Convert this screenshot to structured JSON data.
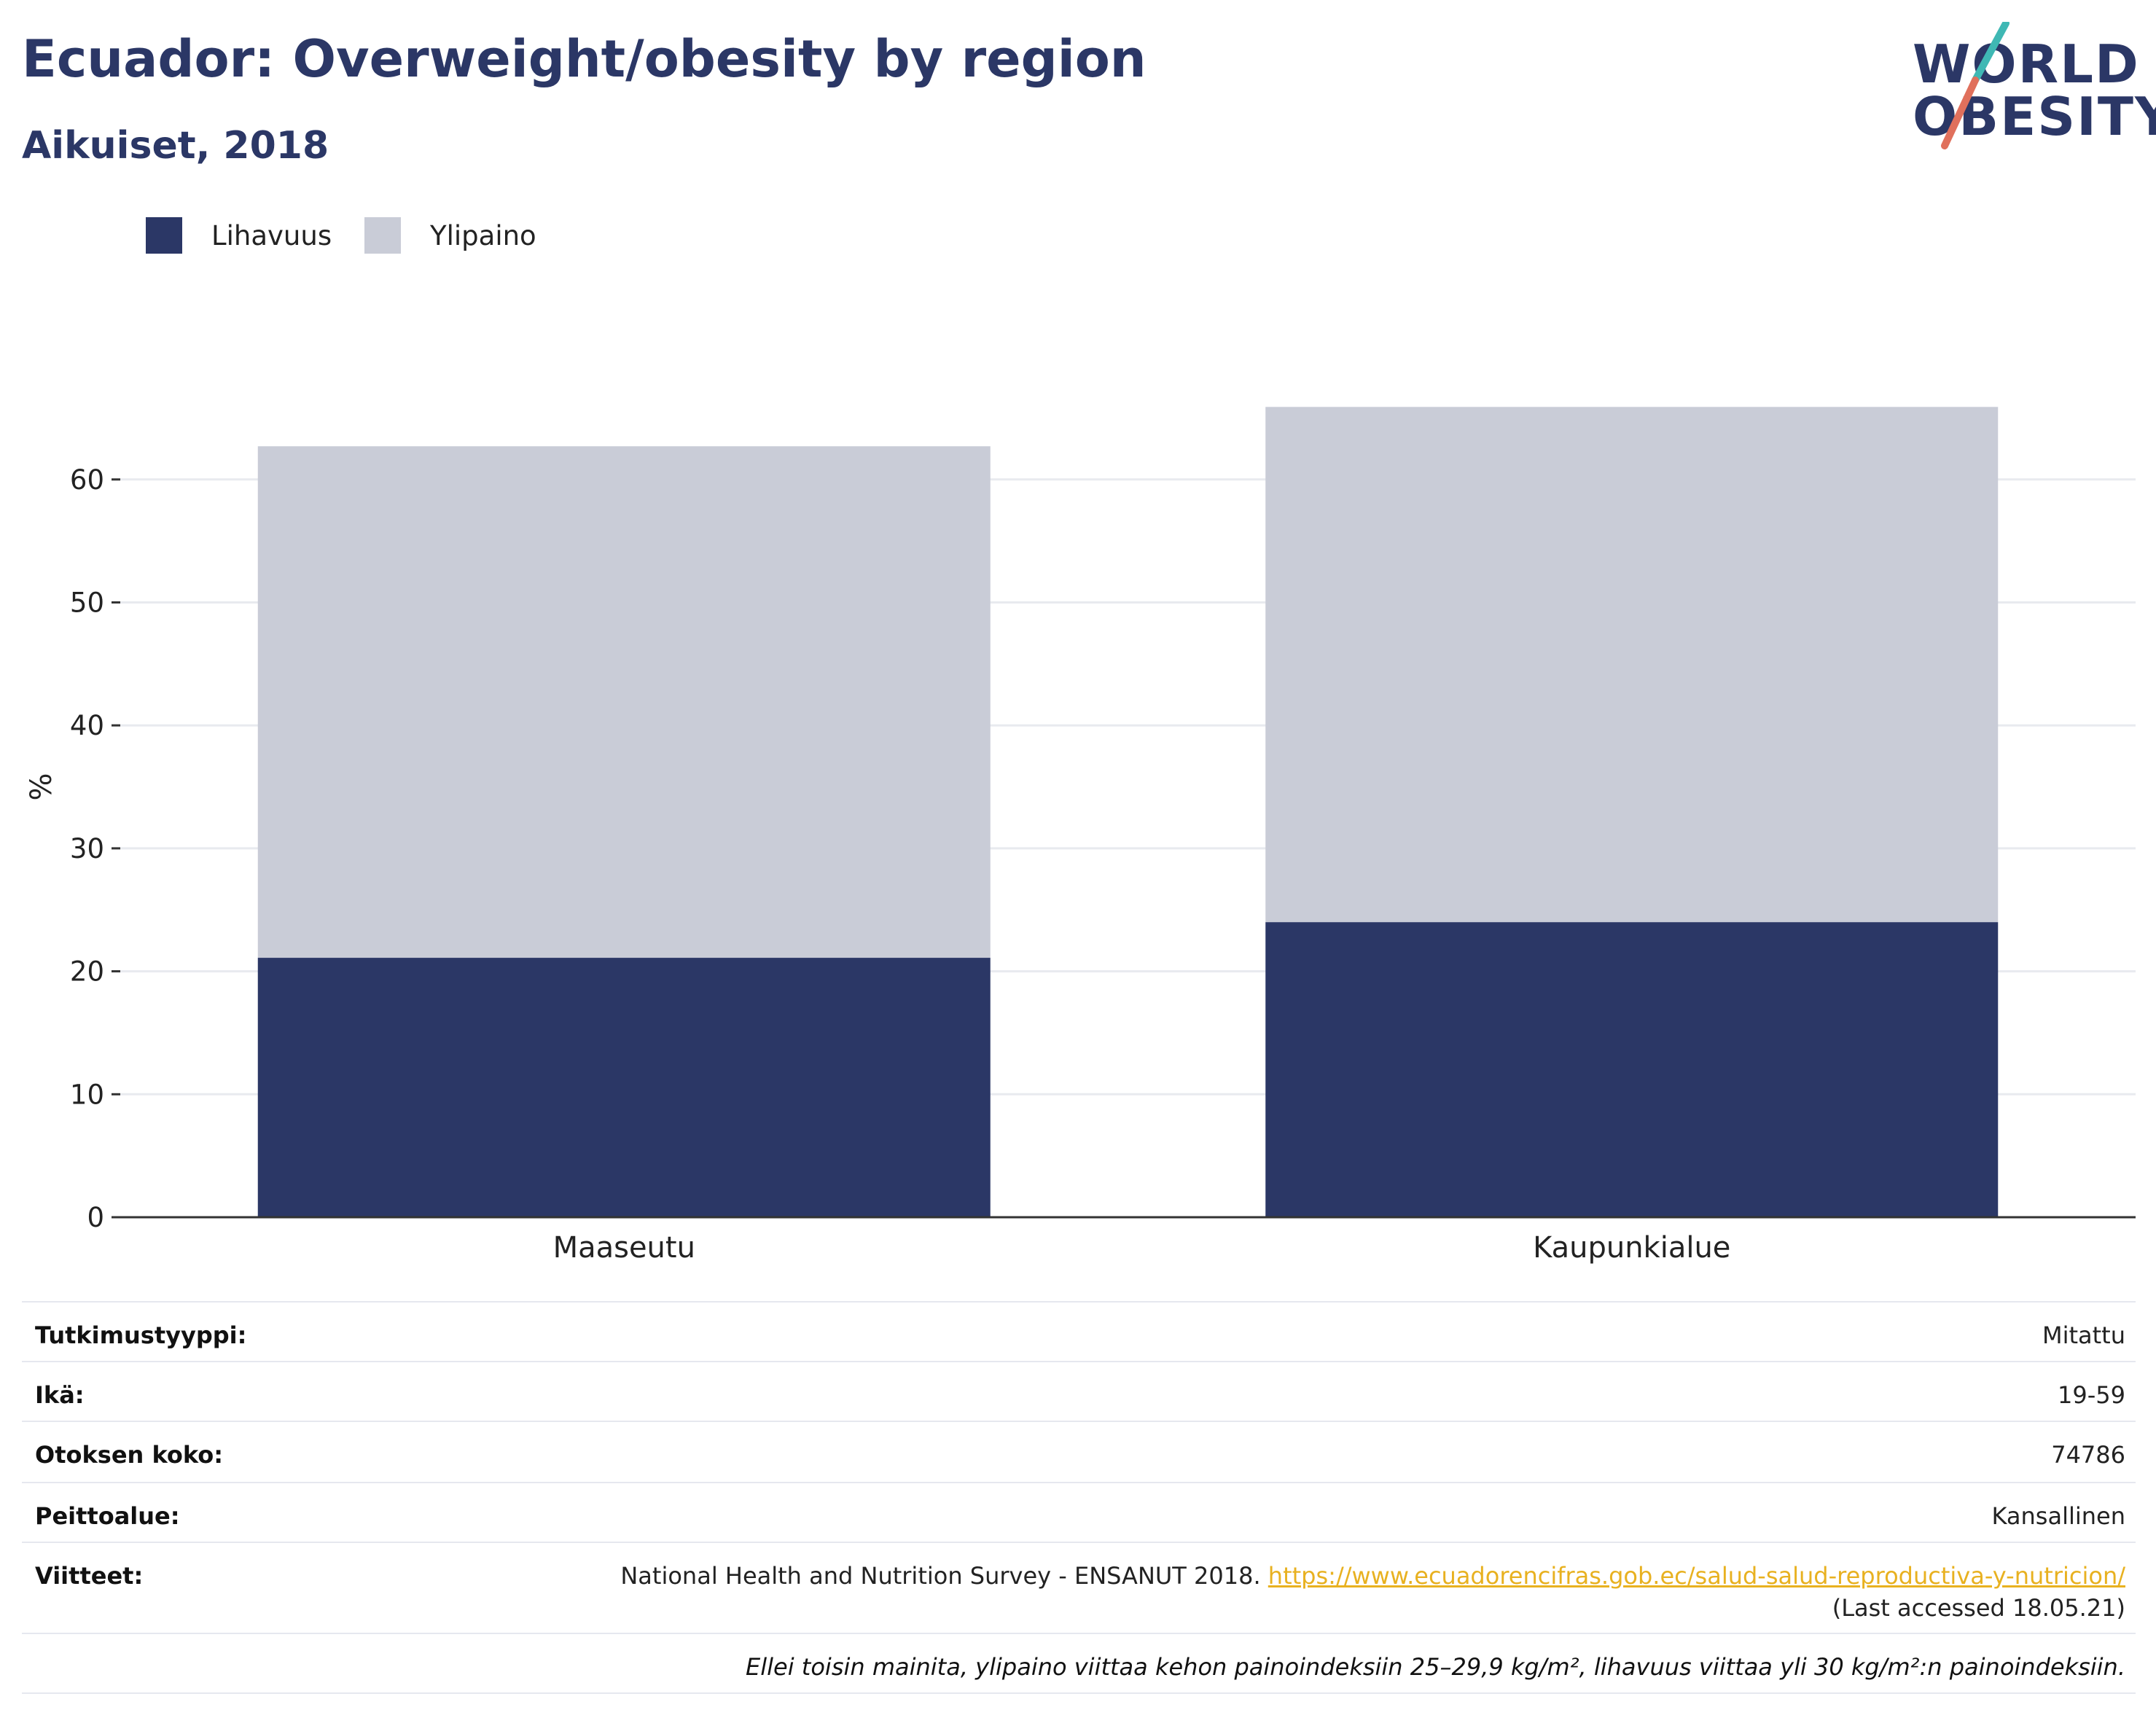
{
  "header": {
    "title": "Ecuador: Overweight/obesity by region",
    "subtitle": "Aikuiset, 2018"
  },
  "logo": {
    "line1": "WORLD",
    "line2": "OBESITY",
    "slash_colors": [
      "#3fb8b4",
      "#e0705c"
    ]
  },
  "colors": {
    "obesity": "#2b3766",
    "overweight": "#c9ccd7",
    "link": "#e8b120",
    "title": "#2b3766"
  },
  "legend": [
    {
      "label": "Lihavuus",
      "color": "#2b3766"
    },
    {
      "label": "Ylipaino",
      "color": "#c9ccd7"
    }
  ],
  "chart_data": {
    "type": "bar",
    "stacked": true,
    "categories": [
      "Maaseutu",
      "Kaupunkialue"
    ],
    "series": [
      {
        "name": "Lihavuus",
        "values": [
          21.1,
          24.0
        ]
      },
      {
        "name": "Ylipaino",
        "values": [
          41.6,
          41.9
        ]
      }
    ],
    "ylabel": "%",
    "xlabel": "",
    "ylim": [
      0,
      70
    ],
    "yticks": [
      0,
      10,
      20,
      30,
      40,
      50,
      60
    ],
    "grid": true,
    "legend_position": "top-left"
  },
  "info": {
    "study_type_label": "Tutkimustyyppi:",
    "study_type_value": "Mitattu",
    "age_label": "Ikä:",
    "age_value": "19-59",
    "sample_label": "Otoksen koko:",
    "sample_value": "74786",
    "coverage_label": "Peittoalue:",
    "coverage_value": "Kansallinen",
    "refs_label": "Viitteet:",
    "refs_text": "National Health and Nutrition Survey - ENSANUT 2018.",
    "refs_link": "https://www.ecuadorencifras.gob.ec/salud-salud-reproductiva-y-nutricion/",
    "refs_accessed": "(Last accessed 18.05.21)",
    "footnote": "Ellei toisin mainita, ylipaino viittaa kehon painoindeksiin 25–29,9 kg/m², lihavuus viittaa yli 30 kg/m²:n painoindeksiin."
  }
}
